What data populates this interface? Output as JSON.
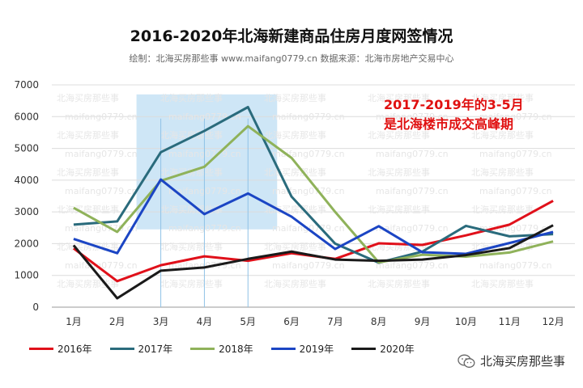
{
  "title": "2016-2020年北海新建商品住房月度网签情况",
  "subtitle": "绘制：北海买房那些事 www.maifang0779.cn 数据来源：北海市房地产交易中心",
  "watermark_cn": "北海买房那些事",
  "watermark_url": "maifang0779.cn",
  "brand": "北海买房那些事",
  "brand_icon": "wechat-icon",
  "chart_data": {
    "type": "line",
    "categories": [
      "1月",
      "2月",
      "3月",
      "4月",
      "5月",
      "6月",
      "7月",
      "8月",
      "9月",
      "10月",
      "11月",
      "12月"
    ],
    "ylim": [
      0,
      7000
    ],
    "yticks": [
      0,
      1000,
      2000,
      3000,
      4000,
      5000,
      6000,
      7000
    ],
    "grid": true,
    "legend": "bottom",
    "highlight": {
      "from_category": "3月",
      "to_category": "5月",
      "y_top": 6700,
      "y_bottom": 2450,
      "color": "#c5e2f5"
    },
    "annotation": [
      "2017-2019年的3-5月",
      "是北海楼市成交高峰期"
    ],
    "annotation_color": "#e01010",
    "series": [
      {
        "name": "2016年",
        "color": "#e0101a",
        "values": [
          1850,
          820,
          1320,
          1600,
          1460,
          1700,
          1520,
          2010,
          1960,
          2260,
          2600,
          3350
        ]
      },
      {
        "name": "2017年",
        "color": "#2a6b7c",
        "values": [
          2600,
          2700,
          4880,
          5550,
          6300,
          3480,
          2000,
          1400,
          1750,
          2560,
          2230,
          2300
        ]
      },
      {
        "name": "2018年",
        "color": "#8fb25a",
        "values": [
          3130,
          2370,
          3980,
          4420,
          5700,
          4700,
          3000,
          1410,
          1650,
          1590,
          1720,
          2070
        ]
      },
      {
        "name": "2019年",
        "color": "#1b45c4",
        "values": [
          2150,
          1700,
          4020,
          2930,
          3580,
          2850,
          1830,
          2550,
          1730,
          1680,
          2020,
          2370
        ]
      },
      {
        "name": "2020年",
        "color": "#1a1a1a",
        "values": [
          1950,
          280,
          1150,
          1250,
          1520,
          1750,
          1500,
          1460,
          1500,
          1640,
          1860,
          2580
        ]
      }
    ]
  }
}
